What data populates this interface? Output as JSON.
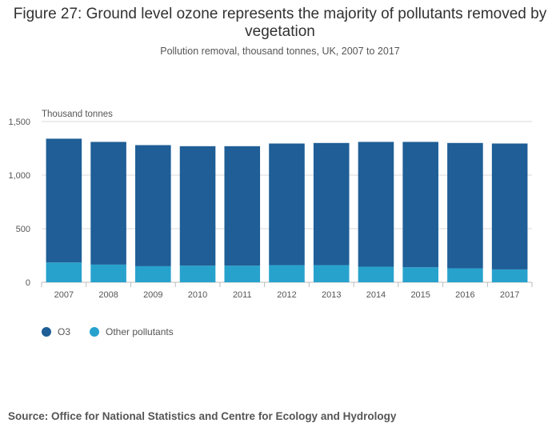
{
  "header": {
    "title": "Figure 27: Ground level ozone represents the majority of pollutants removed by vegetation",
    "subtitle": "Pollution removal, thousand tonnes, UK, 2007 to 2017"
  },
  "footer": {
    "source": "Source: Office for National Statistics and Centre for Ecology and Hydrology"
  },
  "colors": {
    "o3": "#1f5e96",
    "other": "#27a2cd",
    "grid": "#d9d9d9",
    "axis_text": "#555555"
  },
  "chart_data": {
    "type": "bar",
    "stacked": true,
    "ylabel": "Thousand tonnes",
    "ylim": [
      0,
      1500
    ],
    "yticks": [
      0,
      500,
      1000,
      1500
    ],
    "ytick_labels": [
      "0",
      "500",
      "1,000",
      "1,500"
    ],
    "categories": [
      "2007",
      "2008",
      "2009",
      "2010",
      "2011",
      "2012",
      "2013",
      "2014",
      "2015",
      "2016",
      "2017"
    ],
    "series": [
      {
        "name": "Other pollutants",
        "values": [
          185,
          165,
          150,
          155,
          155,
          160,
          160,
          145,
          140,
          130,
          120
        ]
      },
      {
        "name": "O3",
        "values": [
          1155,
          1145,
          1130,
          1115,
          1115,
          1135,
          1140,
          1165,
          1170,
          1170,
          1175
        ]
      }
    ],
    "grid": true,
    "legend_position": "bottom-left"
  }
}
